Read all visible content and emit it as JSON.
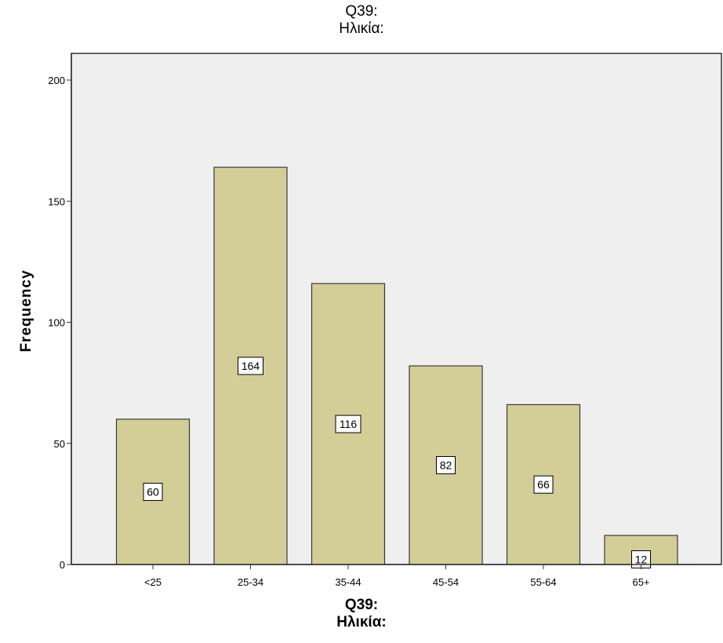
{
  "chart_data": {
    "type": "bar",
    "title": "Q39:\nΗλικία:",
    "xlabel": "Q39:\nΗλικία:",
    "ylabel": "Frequency",
    "categories": [
      "<25",
      "25-34",
      "35-44",
      "45-54",
      "55-64",
      "65+"
    ],
    "values": [
      60,
      164,
      116,
      82,
      66,
      12
    ],
    "data_labels": [
      "60",
      "164",
      "116",
      "82",
      "66",
      "12"
    ],
    "y_ticks": [
      0,
      50,
      100,
      150,
      200
    ],
    "ylim": [
      0,
      200
    ],
    "grid": false,
    "legend": "none",
    "colors": {
      "bar_fill": "#d3cd98",
      "bar_stroke": "#3a3a3a",
      "plot_background": "#efefef",
      "axis": "#333333"
    }
  }
}
